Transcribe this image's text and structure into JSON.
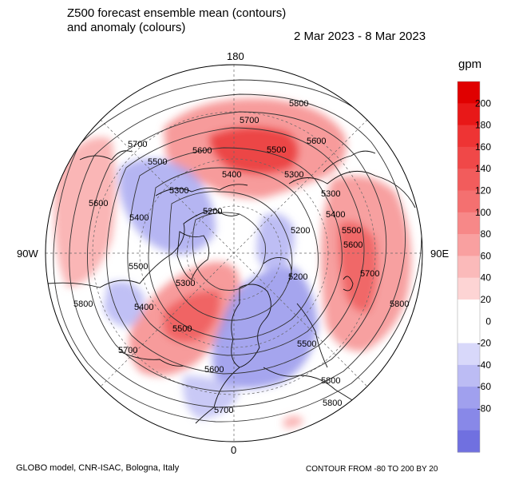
{
  "title_line1": "Z500 forecast ensemble mean (contours)",
  "title_line2": "and anomaly (colours)",
  "date_range": "2 Mar 2023 - 8 Mar 2023",
  "longitude_labels": {
    "top": "180",
    "bottom": "0",
    "left": "90W",
    "right": "90E"
  },
  "contour_labels": [
    "5800",
    "5700",
    "5600",
    "5500",
    "5400",
    "5300",
    "5200",
    "5600",
    "5500",
    "5400",
    "5300",
    "5200",
    "5700",
    "5600",
    "5500",
    "5400",
    "5300",
    "5200",
    "5500",
    "5700",
    "5800",
    "5700",
    "5600",
    "5500",
    "5400",
    "5300",
    "5800",
    "5700",
    "5600",
    "5800",
    "5800",
    "5500"
  ],
  "colorbar": {
    "unit": "gpm",
    "ticks": [
      "200",
      "180",
      "160",
      "140",
      "120",
      "100",
      "80",
      "60",
      "40",
      "20",
      "0",
      "-20",
      "-40",
      "-60",
      "-80"
    ],
    "colors_top_to_bottom": [
      "#e00000",
      "#e81818",
      "#ee3434",
      "#f04848",
      "#f25c5c",
      "#f47070",
      "#f78888",
      "#f9a0a0",
      "#fbbaba",
      "#fdd4d4",
      "#ffffff",
      "#ffffff",
      "#d8d8fa",
      "#bcbcf4",
      "#a0a0ee",
      "#8888e8",
      "#7070e0"
    ]
  },
  "footer_left": "GLOBO model, CNR-ISAC, Bologna, Italy",
  "footer_right": "CONTOUR FROM -80 TO 200 BY 20"
}
